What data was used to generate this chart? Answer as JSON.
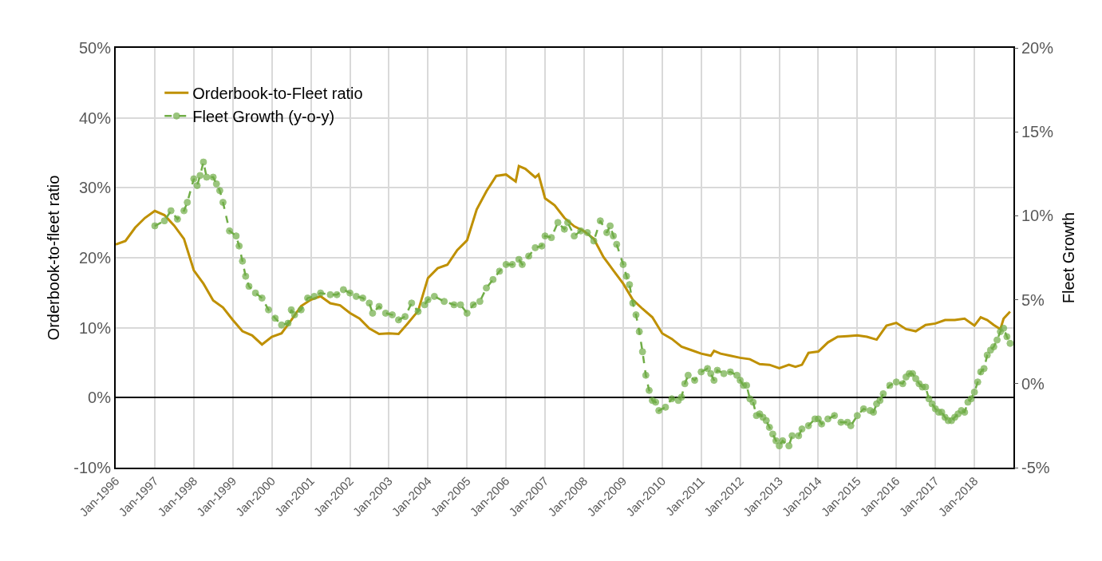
{
  "chart_data": {
    "type": "line",
    "xlabel": null,
    "ylabel": "Orderbook-to-fleet ratio",
    "y2label": "Fleet Growth",
    "xlim": [
      "1996-01",
      "2019-01"
    ],
    "xticks": [
      {
        "value": "1996-01",
        "label": "Jan-1996"
      },
      {
        "value": "1997-01",
        "label": "Jan-1997"
      },
      {
        "value": "1998-01",
        "label": "Jan-1998"
      },
      {
        "value": "1999-01",
        "label": "Jan-1999"
      },
      {
        "value": "2000-01",
        "label": "Jan-2000"
      },
      {
        "value": "2001-01",
        "label": "Jan-2001"
      },
      {
        "value": "2002-01",
        "label": "Jan-2002"
      },
      {
        "value": "2003-01",
        "label": "Jan-2003"
      },
      {
        "value": "2004-01",
        "label": "Jan-2004"
      },
      {
        "value": "2005-01",
        "label": "Jan-2005"
      },
      {
        "value": "2006-01",
        "label": "Jan-2006"
      },
      {
        "value": "2007-01",
        "label": "Jan-2007"
      },
      {
        "value": "2008-01",
        "label": "Jan-2008"
      },
      {
        "value": "2009-01",
        "label": "Jan-2009"
      },
      {
        "value": "2010-01",
        "label": "Jan-2010"
      },
      {
        "value": "2011-01",
        "label": "Jan-2011"
      },
      {
        "value": "2012-01",
        "label": "Jan-2012"
      },
      {
        "value": "2013-01",
        "label": "Jan-2013"
      },
      {
        "value": "2014-01",
        "label": "Jan-2014"
      },
      {
        "value": "2015-01",
        "label": "Jan-2015"
      },
      {
        "value": "2016-01",
        "label": "Jan-2016"
      },
      {
        "value": "2017-01",
        "label": "Jan-2017"
      },
      {
        "value": "2018-01",
        "label": "Jan-2018"
      }
    ],
    "ylim": [
      -10,
      50
    ],
    "yticks": [
      {
        "value": -10,
        "label": "-10%"
      },
      {
        "value": 0,
        "label": "0%"
      },
      {
        "value": 10,
        "label": "10%"
      },
      {
        "value": 20,
        "label": "20%"
      },
      {
        "value": 30,
        "label": "30%"
      },
      {
        "value": 40,
        "label": "40%"
      },
      {
        "value": 50,
        "label": "50%"
      }
    ],
    "y2lim": [
      -5,
      20
    ],
    "y2ticks": [
      {
        "value": -5,
        "label": "-5%"
      },
      {
        "value": 0,
        "label": "0%"
      },
      {
        "value": 5,
        "label": "5%"
      },
      {
        "value": 10,
        "label": "10%"
      },
      {
        "value": 15,
        "label": "15%"
      },
      {
        "value": 20,
        "label": "20%"
      }
    ],
    "grid": true,
    "legend": "top left",
    "series": [
      {
        "name": "Orderbook-to-Fleet ratio",
        "color": "#bf9000",
        "marker": "none",
        "line_style": "solid",
        "x": [
          "1996-01",
          "1996-04",
          "1996-07",
          "1996-10",
          "1997-01",
          "1997-04",
          "1997-07",
          "1997-10",
          "1998-01",
          "1998-04",
          "1998-07",
          "1998-10",
          "1999-01",
          "1999-04",
          "1999-07",
          "1999-10",
          "2000-01",
          "2000-04",
          "2000-07",
          "2000-10",
          "2001-01",
          "2001-04",
          "2001-07",
          "2001-10",
          "2002-01",
          "2002-04",
          "2002-07",
          "2002-10",
          "2003-01",
          "2003-04",
          "2003-07",
          "2003-10",
          "2004-01",
          "2004-04",
          "2004-07",
          "2004-10",
          "2005-01",
          "2005-04",
          "2005-07",
          "2005-10",
          "2006-01",
          "2006-04",
          "2006-05",
          "2006-07",
          "2006-10",
          "2006-11",
          "2007-01",
          "2007-04",
          "2007-07",
          "2007-10",
          "2008-01",
          "2008-04",
          "2008-07",
          "2008-10",
          "2009-01",
          "2009-04",
          "2009-07",
          "2009-10",
          "2010-01",
          "2010-04",
          "2010-07",
          "2010-10",
          "2011-01",
          "2011-04",
          "2011-05",
          "2011-07",
          "2011-10",
          "2012-01",
          "2012-04",
          "2012-07",
          "2012-10",
          "2013-01",
          "2013-04",
          "2013-06",
          "2013-08",
          "2013-10",
          "2014-01",
          "2014-04",
          "2014-07",
          "2014-10",
          "2015-01",
          "2015-04",
          "2015-07",
          "2015-10",
          "2016-01",
          "2016-04",
          "2016-07",
          "2016-10",
          "2017-01",
          "2017-04",
          "2017-07",
          "2017-10",
          "2018-01",
          "2018-03",
          "2018-05",
          "2018-07",
          "2018-09",
          "2018-10",
          "2018-12"
        ],
        "values": [
          21.9,
          22.4,
          24.3,
          25.7,
          26.7,
          26.1,
          24.6,
          22.7,
          18.2,
          16.3,
          13.9,
          12.9,
          11.1,
          9.5,
          8.9,
          7.6,
          8.7,
          9.2,
          11.1,
          13.1,
          14.0,
          14.5,
          13.5,
          13.2,
          12.1,
          11.3,
          9.9,
          9.1,
          9.2,
          9.1,
          10.7,
          12.4,
          17.1,
          18.5,
          19.0,
          21.1,
          22.5,
          26.9,
          29.5,
          31.7,
          31.9,
          30.9,
          33.1,
          32.7,
          31.5,
          31.9,
          28.5,
          27.5,
          25.7,
          24.5,
          23.8,
          22.7,
          20.1,
          18.2,
          16.3,
          14.0,
          12.7,
          11.5,
          9.2,
          8.4,
          7.3,
          6.8,
          6.3,
          6.0,
          6.7,
          6.3,
          6.0,
          5.7,
          5.5,
          4.8,
          4.7,
          4.2,
          4.7,
          4.4,
          4.7,
          6.4,
          6.6,
          7.9,
          8.7,
          8.8,
          8.9,
          8.7,
          8.3,
          10.3,
          10.7,
          9.8,
          9.5,
          10.4,
          10.6,
          11.1,
          11.1,
          11.3,
          10.3,
          11.5,
          11.1,
          10.4,
          9.8,
          11.3,
          12.3
        ]
      },
      {
        "name": "Fleet Growth (y-o-y)",
        "color": "#70ad47",
        "marker": "circle",
        "line_style": "dashed",
        "axis": "y2",
        "x": [
          "1997-01",
          "1997-04",
          "1997-06",
          "1997-08",
          "1997-10",
          "1997-11",
          "1998-01",
          "1998-02",
          "1998-03",
          "1998-04",
          "1998-05",
          "1998-07",
          "1998-08",
          "1998-09",
          "1998-10",
          "1998-12",
          "1999-02",
          "1999-03",
          "1999-04",
          "1999-05",
          "1999-06",
          "1999-08",
          "1999-10",
          "1999-12",
          "2000-02",
          "2000-04",
          "2000-06",
          "2000-07",
          "2000-08",
          "2000-10",
          "2000-12",
          "2001-02",
          "2001-04",
          "2001-07",
          "2001-09",
          "2001-11",
          "2002-01",
          "2002-03",
          "2002-05",
          "2002-07",
          "2002-08",
          "2002-10",
          "2002-12",
          "2003-02",
          "2003-04",
          "2003-06",
          "2003-08",
          "2003-10",
          "2003-12",
          "2004-01",
          "2004-03",
          "2004-06",
          "2004-09",
          "2004-11",
          "2005-01",
          "2005-03",
          "2005-05",
          "2005-07",
          "2005-09",
          "2005-11",
          "2006-01",
          "2006-03",
          "2006-05",
          "2006-06",
          "2006-08",
          "2006-10",
          "2006-12",
          "2007-01",
          "2007-03",
          "2007-05",
          "2007-07",
          "2007-08",
          "2007-10",
          "2007-12",
          "2008-02",
          "2008-04",
          "2008-06",
          "2008-08",
          "2008-09",
          "2008-10",
          "2008-11",
          "2009-01",
          "2009-02",
          "2009-03",
          "2009-04",
          "2009-05",
          "2009-06",
          "2009-07",
          "2009-08",
          "2009-09",
          "2009-10",
          "2009-11",
          "2009-12",
          "2010-02",
          "2010-04",
          "2010-06",
          "2010-07",
          "2010-08",
          "2010-09",
          "2010-11",
          "2011-01",
          "2011-03",
          "2011-04",
          "2011-05",
          "2011-06",
          "2011-08",
          "2011-10",
          "2011-12",
          "2012-01",
          "2012-02",
          "2012-03",
          "2012-04",
          "2012-05",
          "2012-06",
          "2012-07",
          "2012-08",
          "2012-09",
          "2012-10",
          "2012-11",
          "2012-12",
          "2013-01",
          "2013-02",
          "2013-04",
          "2013-05",
          "2013-07",
          "2013-08",
          "2013-10",
          "2013-12",
          "2014-01",
          "2014-02",
          "2014-04",
          "2014-06",
          "2014-08",
          "2014-10",
          "2014-11",
          "2015-01",
          "2015-03",
          "2015-05",
          "2015-06",
          "2015-07",
          "2015-08",
          "2015-09",
          "2015-11",
          "2016-01",
          "2016-03",
          "2016-04",
          "2016-05",
          "2016-06",
          "2016-07",
          "2016-08",
          "2016-09",
          "2016-10",
          "2016-11",
          "2016-12",
          "2017-01",
          "2017-02",
          "2017-03",
          "2017-04",
          "2017-05",
          "2017-06",
          "2017-07",
          "2017-08",
          "2017-09",
          "2017-10",
          "2017-11",
          "2017-12",
          "2018-01",
          "2018-02",
          "2018-03",
          "2018-04",
          "2018-05",
          "2018-06",
          "2018-07",
          "2018-08",
          "2018-09",
          "2018-10",
          "2018-11",
          "2018-12"
        ],
        "values": [
          9.4,
          9.7,
          10.3,
          9.8,
          10.3,
          10.8,
          12.2,
          11.8,
          12.4,
          13.2,
          12.3,
          12.3,
          11.9,
          11.5,
          10.8,
          9.1,
          8.8,
          8.2,
          7.3,
          6.4,
          5.8,
          5.4,
          5.1,
          4.4,
          3.9,
          3.5,
          3.6,
          4.4,
          4.1,
          4.4,
          5.1,
          5.2,
          5.4,
          5.3,
          5.3,
          5.6,
          5.4,
          5.2,
          5.1,
          4.8,
          4.2,
          4.6,
          4.2,
          4.1,
          3.8,
          4.0,
          4.8,
          4.3,
          4.7,
          5.0,
          5.2,
          4.9,
          4.7,
          4.7,
          4.2,
          4.7,
          4.9,
          5.7,
          6.2,
          6.7,
          7.1,
          7.1,
          7.4,
          7.1,
          7.6,
          8.1,
          8.2,
          8.8,
          8.7,
          9.6,
          9.2,
          9.6,
          8.8,
          9.1,
          9.0,
          8.5,
          9.7,
          9.0,
          9.4,
          8.8,
          8.3,
          7.1,
          6.4,
          5.9,
          4.8,
          4.1,
          3.1,
          1.9,
          0.5,
          -0.4,
          -1.0,
          -1.1,
          -1.6,
          -1.4,
          -0.9,
          -1.0,
          -0.8,
          0.0,
          0.5,
          0.2,
          0.7,
          0.9,
          0.6,
          0.2,
          0.8,
          0.6,
          0.7,
          0.5,
          0.2,
          -0.1,
          -0.1,
          -0.9,
          -1.1,
          -1.9,
          -1.8,
          -2.0,
          -2.2,
          -2.6,
          -3.0,
          -3.4,
          -3.7,
          -3.4,
          -3.7,
          -3.1,
          -3.1,
          -2.7,
          -2.5,
          -2.1,
          -2.1,
          -2.4,
          -2.1,
          -1.9,
          -2.3,
          -2.3,
          -2.5,
          -1.9,
          -1.5,
          -1.6,
          -1.7,
          -1.2,
          -1.0,
          -0.6,
          -0.1,
          0.1,
          0.0,
          0.4,
          0.6,
          0.6,
          0.3,
          0.0,
          -0.2,
          -0.2,
          -0.9,
          -1.2,
          -1.5,
          -1.7,
          -1.7,
          -2.0,
          -2.2,
          -2.2,
          -2.0,
          -1.8,
          -1.6,
          -1.7,
          -1.1,
          -0.9,
          -0.5,
          0.1,
          0.7,
          0.9,
          1.7,
          2.0,
          2.2,
          2.6,
          3.1,
          3.3,
          2.8,
          2.4
        ]
      }
    ]
  }
}
